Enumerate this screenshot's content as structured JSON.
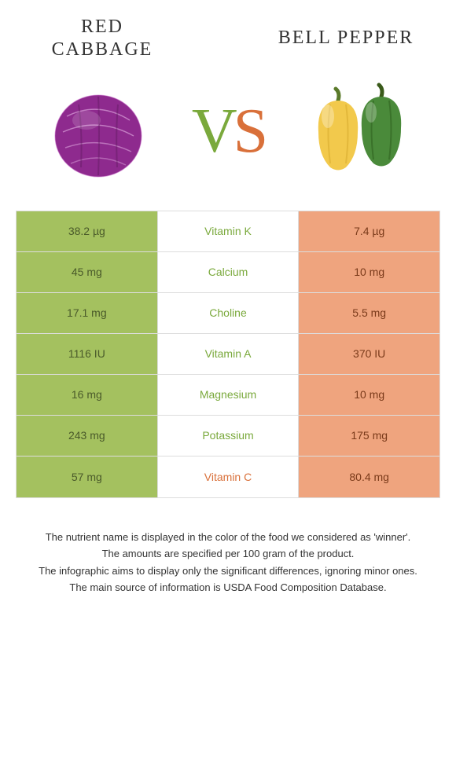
{
  "left": {
    "title": "Red cabbage",
    "color_winner": "#7aa93c",
    "cell_bg": "#a4c15f",
    "cell_text": "#4a5a2a"
  },
  "right": {
    "title": "Bell Pepper",
    "color_winner": "#d9703a",
    "cell_bg": "#efa47e",
    "cell_text": "#7a3a1a"
  },
  "nutrients": [
    {
      "name": "Vitamin K",
      "left": "38.2 µg",
      "right": "7.4 µg",
      "winner": "left"
    },
    {
      "name": "Calcium",
      "left": "45 mg",
      "right": "10 mg",
      "winner": "left"
    },
    {
      "name": "Choline",
      "left": "17.1 mg",
      "right": "5.5 mg",
      "winner": "left"
    },
    {
      "name": "Vitamin A",
      "left": "1116 IU",
      "right": "370 IU",
      "winner": "left"
    },
    {
      "name": "Magnesium",
      "left": "16 mg",
      "right": "10 mg",
      "winner": "left"
    },
    {
      "name": "Potassium",
      "left": "243 mg",
      "right": "175 mg",
      "winner": "left"
    },
    {
      "name": "Vitamin C",
      "left": "57 mg",
      "right": "80.4 mg",
      "winner": "right"
    }
  ],
  "footer": [
    "The nutrient name is displayed in the color of the food we considered as 'winner'.",
    "The amounts are specified per 100 gram of the product.",
    "The infographic aims to display only the significant differences, ignoring minor ones.",
    "The main source of information is USDA Food Composition Database."
  ]
}
